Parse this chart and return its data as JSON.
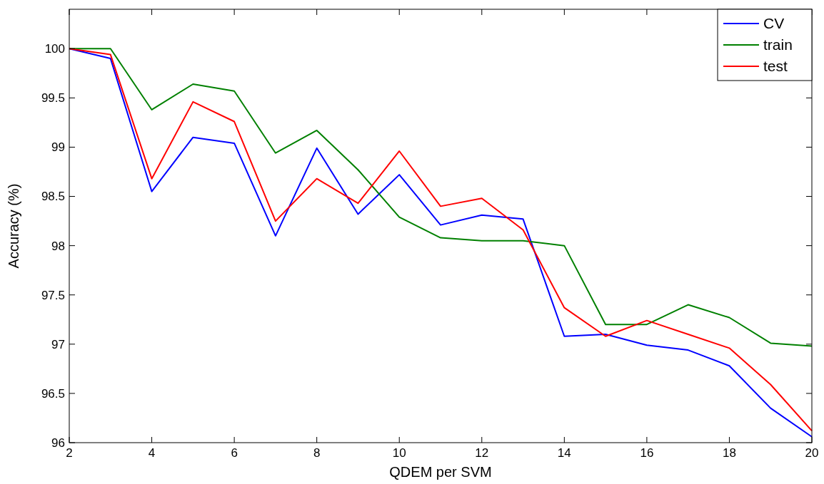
{
  "chart_data": {
    "type": "line",
    "xlabel": "QDEM per SVM",
    "ylabel": "Accuracy (%)",
    "x": [
      2,
      3,
      4,
      5,
      6,
      7,
      8,
      9,
      10,
      11,
      12,
      13,
      14,
      15,
      16,
      17,
      18,
      19,
      20
    ],
    "series": [
      {
        "name": "CV",
        "color": "#0000ff",
        "values": [
          100,
          99.9,
          98.55,
          99.1,
          99.04,
          98.1,
          98.99,
          98.32,
          98.72,
          98.21,
          98.31,
          98.27,
          97.08,
          97.1,
          96.99,
          96.94,
          96.78,
          96.35,
          96.06
        ]
      },
      {
        "name": "train",
        "color": "#008000",
        "values": [
          100,
          100,
          99.38,
          99.64,
          99.57,
          98.94,
          99.17,
          98.77,
          98.29,
          98.08,
          98.05,
          98.05,
          98.0,
          97.2,
          97.2,
          97.4,
          97.27,
          97.01,
          96.98
        ]
      },
      {
        "name": "test",
        "color": "#ff0000",
        "values": [
          100,
          99.94,
          98.68,
          99.46,
          99.26,
          98.25,
          98.68,
          98.43,
          98.96,
          98.4,
          98.48,
          98.16,
          97.37,
          97.08,
          97.24,
          97.1,
          96.96,
          96.59,
          96.12
        ]
      }
    ],
    "xlim": [
      2,
      20
    ],
    "ylim": [
      96,
      100.4
    ],
    "xticks": [
      2,
      4,
      6,
      8,
      10,
      12,
      14,
      16,
      18,
      20
    ],
    "yticks": [
      96,
      96.5,
      97,
      97.5,
      98,
      98.5,
      99,
      99.5,
      100
    ],
    "grid": false,
    "legend": "top right",
    "marker": "none",
    "line_style": "solid"
  }
}
